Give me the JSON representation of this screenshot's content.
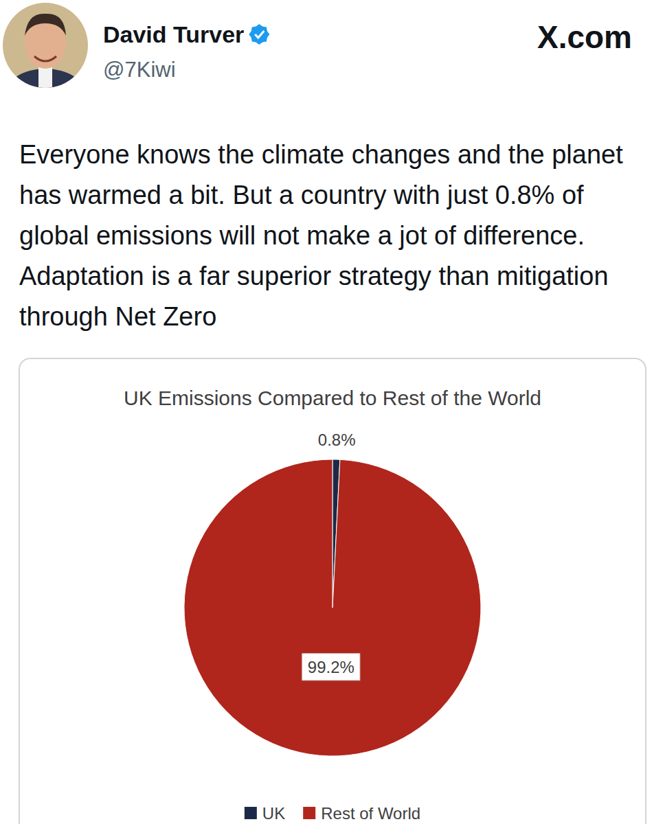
{
  "post": {
    "name": "David Turver",
    "handle": "@7Kiwi",
    "site": "X.com",
    "text": "Everyone knows the climate changes and the planet has warmed a bit. But a country with just 0.8% of global emissions will not make a jot of difference. Adaptation is a far superior strategy than mitigation through Net Zero"
  },
  "chart_data": {
    "type": "pie",
    "title": "UK Emissions Compared to Rest of the World",
    "categories": [
      "UK",
      "Rest of World"
    ],
    "values": [
      0.8,
      99.2
    ],
    "value_labels": [
      "0.8%",
      "99.2%"
    ],
    "colors": [
      "#1c2a48",
      "#b0261c"
    ],
    "data_labels": true,
    "legend": "bottom"
  }
}
